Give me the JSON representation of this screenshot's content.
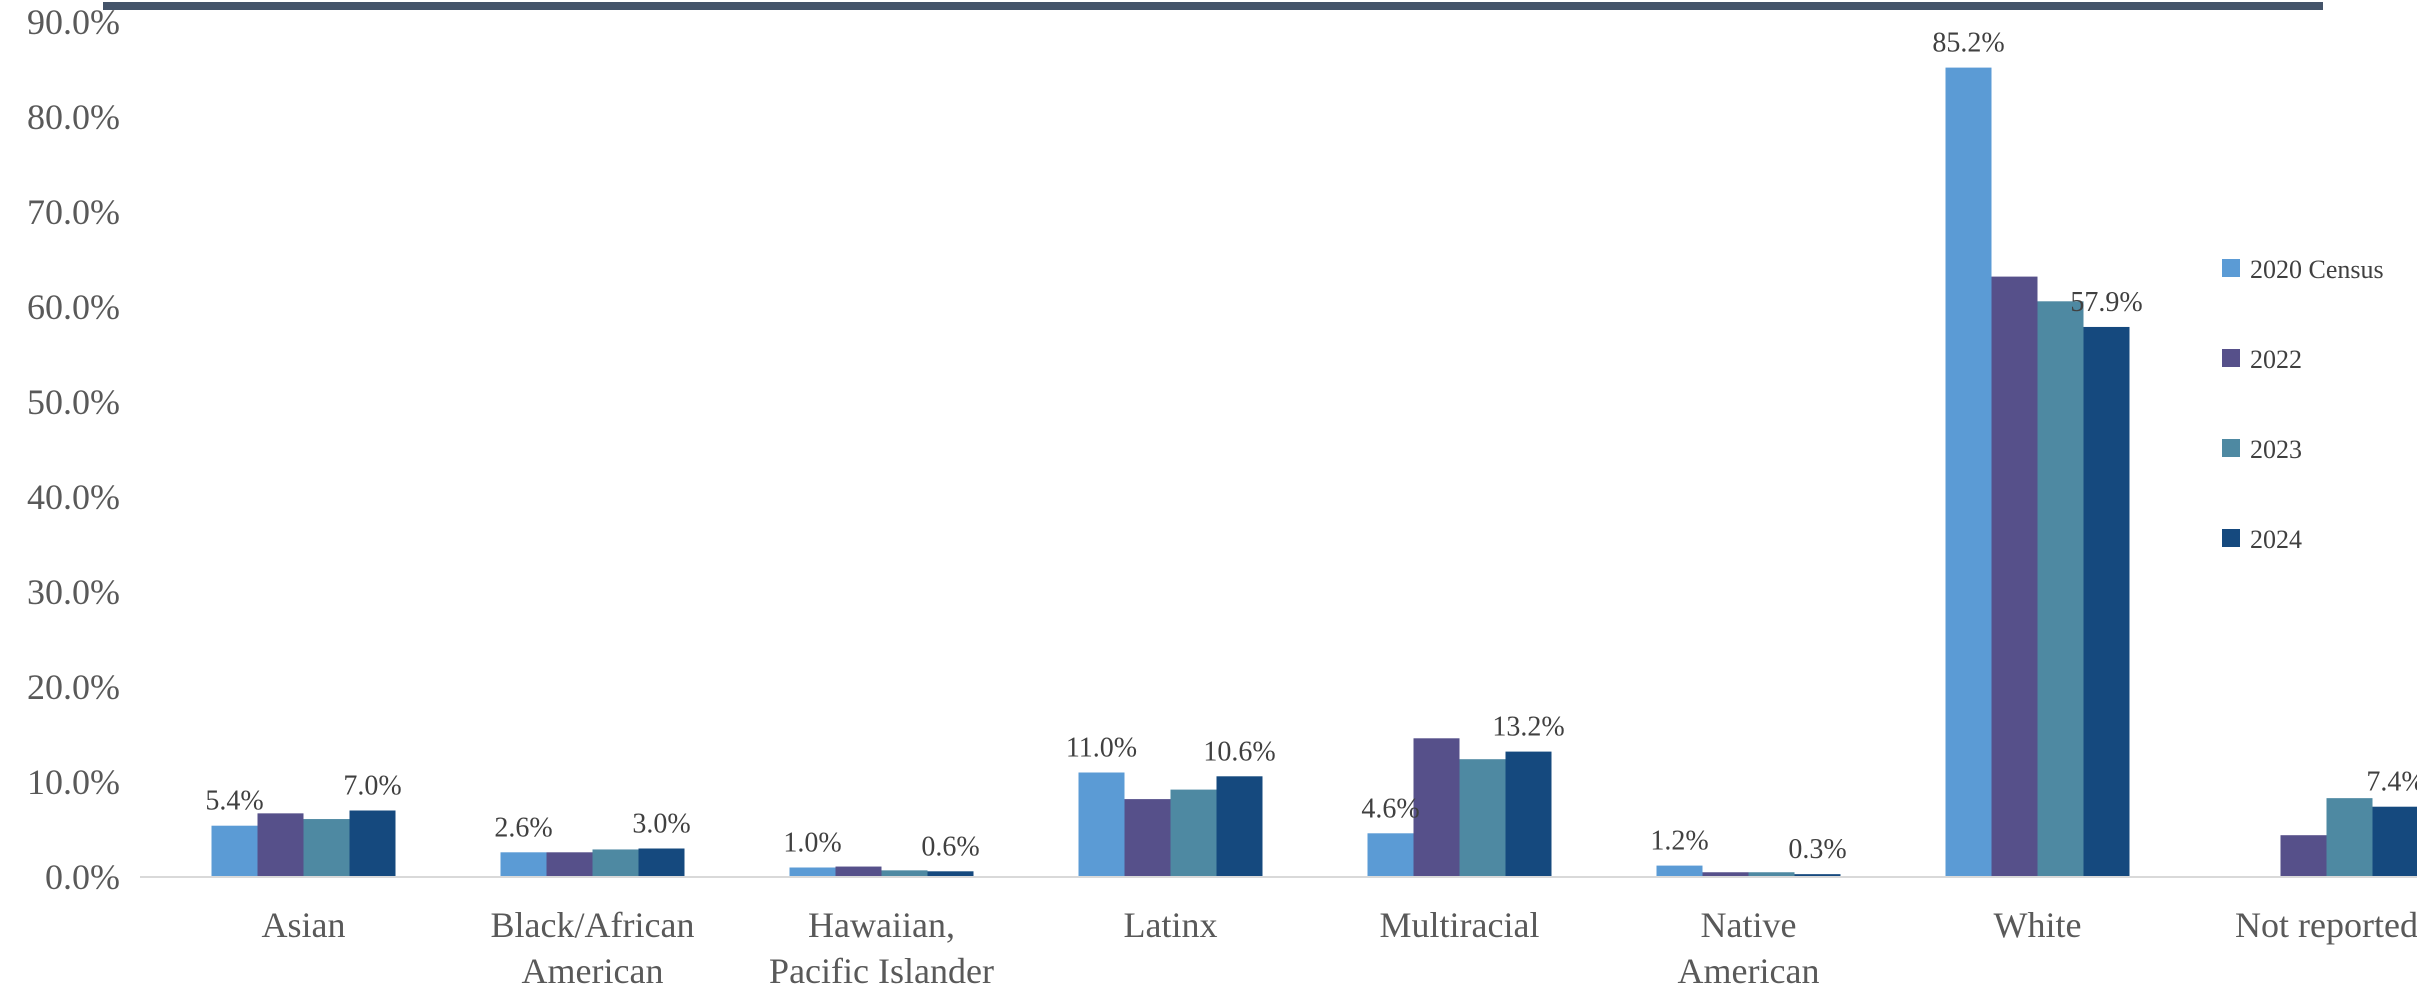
{
  "chart_data": {
    "type": "bar",
    "title": "",
    "xlabel": "",
    "ylabel": "",
    "ylim": [
      0,
      90
    ],
    "y_ticks": [
      "0.0%",
      "10.0%",
      "20.0%",
      "30.0%",
      "40.0%",
      "50.0%",
      "60.0%",
      "70.0%",
      "80.0%",
      "90.0%"
    ],
    "grid": false,
    "legend_position": "right",
    "categories": [
      [
        "Asian"
      ],
      [
        "Black/African",
        "American"
      ],
      [
        "Hawaiian,",
        "Pacific Islander"
      ],
      [
        "Latinx"
      ],
      [
        "Multiracial"
      ],
      [
        "Native",
        "American"
      ],
      [
        "White"
      ],
      [
        "Not reported"
      ]
    ],
    "series": [
      {
        "name": "2020 Census",
        "color": "#5B9BD5",
        "values": [
          5.4,
          2.6,
          1.0,
          11.0,
          4.6,
          1.2,
          85.2,
          null
        ]
      },
      {
        "name": "2022",
        "color": "#56508A",
        "values": [
          6.7,
          2.6,
          1.1,
          8.2,
          14.6,
          0.5,
          63.2,
          4.4
        ]
      },
      {
        "name": "2023",
        "color": "#4E89A2",
        "values": [
          6.1,
          2.9,
          0.7,
          9.2,
          12.4,
          0.5,
          60.6,
          8.3
        ]
      },
      {
        "name": "2024",
        "color": "#15497E",
        "values": [
          7.0,
          3.0,
          0.6,
          10.6,
          13.2,
          0.3,
          57.9,
          7.4
        ]
      }
    ],
    "data_labels": [
      {
        "category": 0,
        "series": 0,
        "text": "5.4%"
      },
      {
        "category": 0,
        "series": 3,
        "text": "7.0%"
      },
      {
        "category": 1,
        "series": 0,
        "text": "2.6%"
      },
      {
        "category": 1,
        "series": 3,
        "text": "3.0%"
      },
      {
        "category": 2,
        "series": 0,
        "text": "1.0%"
      },
      {
        "category": 2,
        "series": 3,
        "text": "0.6%"
      },
      {
        "category": 3,
        "series": 0,
        "text": "11.0%"
      },
      {
        "category": 3,
        "series": 3,
        "text": "10.6%"
      },
      {
        "category": 4,
        "series": 0,
        "text": "4.6%"
      },
      {
        "category": 4,
        "series": 3,
        "text": "13.2%"
      },
      {
        "category": 5,
        "series": 0,
        "text": "1.2%"
      },
      {
        "category": 5,
        "series": 3,
        "text": "0.3%"
      },
      {
        "category": 6,
        "series": 0,
        "text": "85.2%"
      },
      {
        "category": 6,
        "series": 3,
        "text": "57.9%"
      },
      {
        "category": 7,
        "series": 3,
        "text": "7.4%"
      }
    ],
    "top_rule_color": "#44546A"
  }
}
